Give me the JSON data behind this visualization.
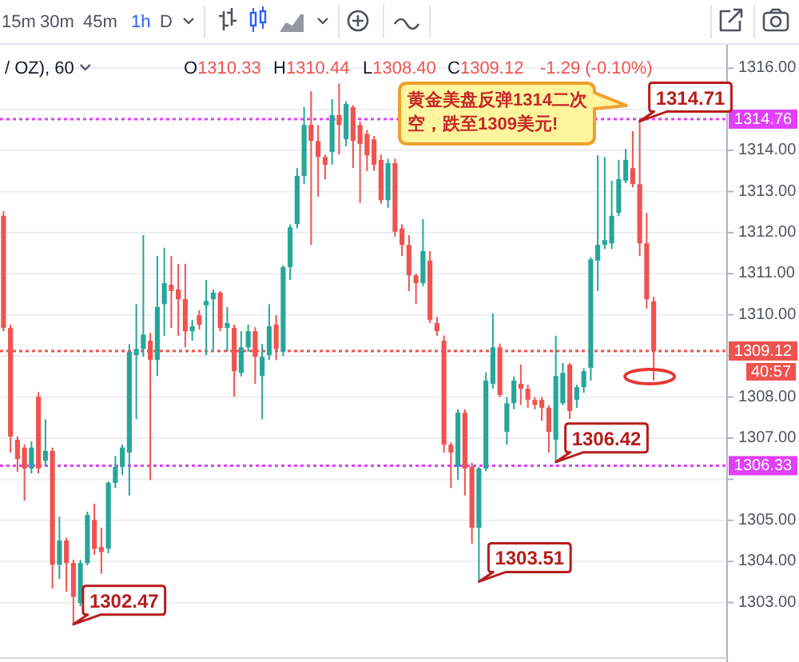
{
  "chart_data": {
    "type": "candlestick",
    "categories": [
      null,
      null,
      null,
      null,
      null,
      null,
      null,
      null,
      null,
      null,
      null,
      null,
      null,
      null,
      null,
      null,
      null,
      null,
      null,
      null,
      null,
      null,
      null,
      null,
      null,
      null,
      null,
      null,
      null,
      null,
      null,
      null,
      null,
      null,
      null,
      null,
      null,
      null,
      null,
      null,
      null,
      null,
      null,
      null,
      null,
      null,
      null,
      null,
      null,
      null,
      null,
      null,
      null,
      null,
      null,
      null,
      null,
      null,
      null,
      null,
      null,
      null,
      null,
      null,
      null,
      null,
      null,
      null,
      null,
      null,
      null,
      null,
      null,
      null,
      null,
      null,
      null,
      null,
      null,
      null,
      null,
      null,
      null,
      null,
      null,
      null,
      null,
      null,
      null,
      null,
      null,
      null,
      null,
      null,
      null,
      null,
      null,
      null,
      null,
      null,
      null,
      null,
      null,
      null
    ],
    "ohlc": [
      [
        1312.41,
        1312.52,
        1309.6,
        1309.68
      ],
      [
        1309.68,
        1309.76,
        1306.65,
        1307.04
      ],
      [
        1306.96,
        1307.04,
        1306.18,
        1306.49
      ],
      [
        1306.77,
        1306.85,
        1305.48,
        1306.26
      ],
      [
        1306.26,
        1306.92,
        1306.14,
        1306.77
      ],
      [
        1308.01,
        1308.12,
        1306.14,
        1306.26
      ],
      [
        1306.45,
        1307.46,
        1306.3,
        1306.69
      ],
      [
        1306.69,
        1306.77,
        1303.34,
        1303.92
      ],
      [
        1303.92,
        1305.09,
        1303.57,
        1304.51
      ],
      [
        1304.51,
        1304.58,
        1303.26,
        1303.96
      ],
      [
        1303.96,
        1304.04,
        1302.47,
        1303.14
      ],
      [
        1302.99,
        1304.04,
        1302.91,
        1303.96
      ],
      [
        1303.96,
        1305.21,
        1303.9,
        1305.13
      ],
      [
        1305.01,
        1305.4,
        1304.16,
        1304.31
      ],
      [
        1304.35,
        1304.82,
        1303.7,
        1304.23
      ],
      [
        1304.31,
        1305.95,
        1304.2,
        1305.91
      ],
      [
        1305.91,
        1306.57,
        1305.79,
        1306.3
      ],
      [
        1306.3,
        1306.84,
        1306.1,
        1306.77
      ],
      [
        1306.65,
        1309.29,
        1305.6,
        1309.1
      ],
      [
        1309.02,
        1310.26,
        1307.46,
        1309.17
      ],
      [
        1309.17,
        1311.94,
        1308.98,
        1309.52
      ],
      [
        1309.37,
        1309.56,
        1305.98,
        1308.9
      ],
      [
        1308.9,
        1311.43,
        1308.51,
        1310.19
      ],
      [
        1310.26,
        1311.63,
        1309.49,
        1310.77
      ],
      [
        1310.73,
        1311.43,
        1309.68,
        1310.58
      ],
      [
        1310.62,
        1311.24,
        1309.49,
        1310.38
      ],
      [
        1310.38,
        1311.24,
        1309.21,
        1309.6
      ],
      [
        1309.6,
        1309.88,
        1309.37,
        1309.72
      ],
      [
        1309.99,
        1310.11,
        1309.64,
        1309.76
      ],
      [
        1310.23,
        1310.85,
        1309.02,
        1310.34
      ],
      [
        1310.38,
        1310.62,
        1309.1,
        1310.54
      ],
      [
        1310.54,
        1310.58,
        1309.6,
        1309.68
      ],
      [
        1309.68,
        1310.19,
        1309.1,
        1309.8
      ],
      [
        1309.68,
        1309.76,
        1308.01,
        1308.63
      ],
      [
        1308.59,
        1309.6,
        1308.5,
        1309.21
      ],
      [
        1309.21,
        1309.76,
        1309.1,
        1309.6
      ],
      [
        1309.6,
        1309.7,
        1308.32,
        1308.98
      ],
      [
        1308.51,
        1309.29,
        1307.46,
        1308.98
      ],
      [
        1309.02,
        1310.26,
        1308.9,
        1309.72
      ],
      [
        1309.76,
        1309.99,
        1308.9,
        1309.17
      ],
      [
        1309.1,
        1311.2,
        1309.0,
        1311.16
      ],
      [
        1311.16,
        1312.2,
        1310.85,
        1312.13
      ],
      [
        1312.21,
        1313.57,
        1312.1,
        1313.38
      ],
      [
        1313.38,
        1315.05,
        1313.18,
        1314.62
      ],
      [
        1314.62,
        1315.44,
        1311.7,
        1314.23
      ],
      [
        1314.23,
        1314.62,
        1312.87,
        1313.84
      ],
      [
        1313.84,
        1313.9,
        1313.3,
        1313.65
      ],
      [
        1313.96,
        1315.25,
        1313.65,
        1314.86
      ],
      [
        1314.86,
        1315.63,
        1313.9,
        1314.62
      ],
      [
        1314.27,
        1315.2,
        1314.1,
        1315.13
      ],
      [
        1315.05,
        1315.1,
        1313.57,
        1314.23
      ],
      [
        1314.62,
        1314.7,
        1312.72,
        1314.16
      ],
      [
        1314.4,
        1314.5,
        1313.5,
        1313.88
      ],
      [
        1314.27,
        1314.35,
        1313.5,
        1313.65
      ],
      [
        1313.77,
        1313.9,
        1312.7,
        1312.79
      ],
      [
        1312.79,
        1313.8,
        1312.6,
        1313.69
      ],
      [
        1313.69,
        1313.8,
        1311.9,
        1312.02
      ],
      [
        1312.1,
        1312.2,
        1311.43,
        1311.7
      ],
      [
        1311.7,
        1311.94,
        1310.58,
        1310.96
      ],
      [
        1310.96,
        1311.0,
        1310.26,
        1310.77
      ],
      [
        1310.77,
        1312.33,
        1310.7,
        1311.55
      ],
      [
        1311.32,
        1311.55,
        1309.8,
        1309.88
      ],
      [
        1309.8,
        1309.95,
        1309.49,
        1309.6
      ],
      [
        1309.37,
        1309.5,
        1306.65,
        1306.84
      ],
      [
        1306.84,
        1306.9,
        1305.79,
        1306.65
      ],
      [
        1306.3,
        1307.7,
        1305.98,
        1307.62
      ],
      [
        1307.62,
        1307.7,
        1305.6,
        1306.26
      ],
      [
        1306.3,
        1306.4,
        1304.43,
        1304.82
      ],
      [
        1304.82,
        1306.3,
        1303.51,
        1306.26
      ],
      [
        1306.26,
        1308.6,
        1306.2,
        1308.4
      ],
      [
        1308.32,
        1310.03,
        1308.2,
        1309.21
      ],
      [
        1309.21,
        1309.3,
        1308.0,
        1308.05
      ],
      [
        1307.15,
        1308.0,
        1306.84,
        1307.85
      ],
      [
        1307.85,
        1308.5,
        1307.7,
        1308.4
      ],
      [
        1308.32,
        1308.79,
        1307.81,
        1308.2
      ],
      [
        1308.2,
        1308.3,
        1307.74,
        1307.93
      ],
      [
        1307.93,
        1308.0,
        1307.7,
        1307.81
      ],
      [
        1307.93,
        1308.0,
        1307.42,
        1307.74
      ],
      [
        1307.74,
        1307.8,
        1306.65,
        1307.15
      ],
      [
        1306.96,
        1309.49,
        1306.42,
        1308.51
      ],
      [
        1307.85,
        1308.83,
        1307.8,
        1308.59
      ],
      [
        1308.79,
        1308.83,
        1307.46,
        1307.66
      ],
      [
        1307.93,
        1308.3,
        1307.74,
        1308.24
      ],
      [
        1308.24,
        1308.7,
        1308.1,
        1308.63
      ],
      [
        1308.71,
        1311.4,
        1308.4,
        1311.35
      ],
      [
        1311.32,
        1313.88,
        1310.58,
        1311.7
      ],
      [
        1311.7,
        1313.84,
        1311.6,
        1311.82
      ],
      [
        1311.74,
        1313.26,
        1311.6,
        1312.41
      ],
      [
        1312.48,
        1313.77,
        1312.4,
        1313.3
      ],
      [
        1313.26,
        1314.04,
        1313.2,
        1313.77
      ],
      [
        1313.57,
        1314.47,
        1313.1,
        1313.18
      ],
      [
        1313.18,
        1314.71,
        1311.43,
        1311.74
      ],
      [
        1311.74,
        1312.48,
        1310.15,
        1310.38
      ],
      [
        1310.33,
        1310.44,
        1308.4,
        1309.12
      ],
      null,
      null,
      null,
      null,
      null,
      null,
      null,
      null,
      null,
      null
    ],
    "colors": [
      "#ef5350",
      "#ef5350",
      "#ef5350",
      "#ef5350",
      "#26a69a",
      "#ef5350",
      "#26a69a",
      "#ef5350",
      "#26a69a",
      "#ef5350",
      "#ef5350",
      "#26a69a",
      "#26a69a",
      "#ef5350",
      "#ef5350",
      "#26a69a",
      "#26a69a",
      "#26a69a",
      "#26a69a",
      "#26a69a",
      "#26a69a",
      "#ef5350",
      "#26a69a",
      "#26a69a",
      "#ef5350",
      "#ef5350",
      "#ef5350",
      "#26a69a",
      "#ef5350",
      "#26a69a",
      "#26a69a",
      "#ef5350",
      "#26a69a",
      "#ef5350",
      "#26a69a",
      "#26a69a",
      "#ef5350",
      "#26a69a",
      "#26a69a",
      "#ef5350",
      "#26a69a",
      "#26a69a",
      "#26a69a",
      "#26a69a",
      "#ef5350",
      "#ef5350",
      "#ef5350",
      "#26a69a",
      "#ef5350",
      "#26a69a",
      "#ef5350",
      "#ef5350",
      "#ef5350",
      "#ef5350",
      "#ef5350",
      "#26a69a",
      "#ef5350",
      "#ef5350",
      "#ef5350",
      "#ef5350",
      "#26a69a",
      "#ef5350",
      "#ef5350",
      "#ef5350",
      "#ef5350",
      "#26a69a",
      "#ef5350",
      "#ef5350",
      "#26a69a",
      "#26a69a",
      "#26a69a",
      "#ef5350",
      "#26a69a",
      "#26a69a",
      "#ef5350",
      "#ef5350",
      "#ef5350",
      "#ef5350",
      "#ef5350",
      "#26a69a",
      "#26a69a",
      "#ef5350",
      "#26a69a",
      "#26a69a",
      "#26a69a",
      "#26a69a",
      "#26a69a",
      "#26a69a",
      "#26a69a",
      "#26a69a",
      "#ef5350",
      "#ef5350",
      "#ef5350",
      "#ef5350",
      null,
      null,
      null,
      null,
      null,
      null,
      null,
      null,
      null,
      null
    ],
    "ylim": [
      1301.67,
      1316.57
    ],
    "yticks": [
      {
        "value": 1303,
        "label": "1303.00"
      },
      {
        "value": 1304,
        "label": "1304.00"
      },
      {
        "value": 1305,
        "label": "1305.00"
      },
      {
        "value": 1306,
        "label": null
      },
      {
        "value": 1307,
        "label": "1307.00"
      },
      {
        "value": 1308,
        "label": "1308.00"
      },
      {
        "value": 1309,
        "label": null
      },
      {
        "value": 1310,
        "label": "1310.00"
      },
      {
        "value": 1311,
        "label": "1311.00"
      },
      {
        "value": 1312,
        "label": "1312.00"
      },
      {
        "value": 1313,
        "label": "1313.00"
      },
      {
        "value": 1314,
        "label": "1314.00"
      },
      {
        "value": 1315,
        "label": null
      },
      {
        "value": 1316,
        "label": "1316.00"
      }
    ],
    "tick_labels": "y",
    "grid": "y",
    "ref_lines": [
      {
        "axis": "y",
        "value": 1314.76,
        "label": "1314.76",
        "color": "#e040fb",
        "line_style": "dotted"
      },
      {
        "axis": "y",
        "value": 1309.12,
        "label": "1309.12",
        "color": "#ef5350",
        "line_style": "dotted"
      },
      {
        "axis": "y",
        "value": 1306.33,
        "label": "1306.33",
        "color": "#e040fb",
        "line_style": "dotted"
      }
    ],
    "annotations": [
      "15m",
      "30m",
      "45m",
      "1h",
      "D",
      "/ OZ), 60",
      "O1310.33",
      "H1310.44",
      "L1308.40",
      "C1309.12",
      "-1.29 (-0.10%)",
      "40:57",
      "黄金美盘反弹1314二次空，跌至1309美元!",
      {
        "text": "1314.71",
        "y": 1314.71
      },
      "1302.47",
      "1303.51",
      {
        "text": "1306.42",
        "y": 1306.42
      }
    ]
  }
}
